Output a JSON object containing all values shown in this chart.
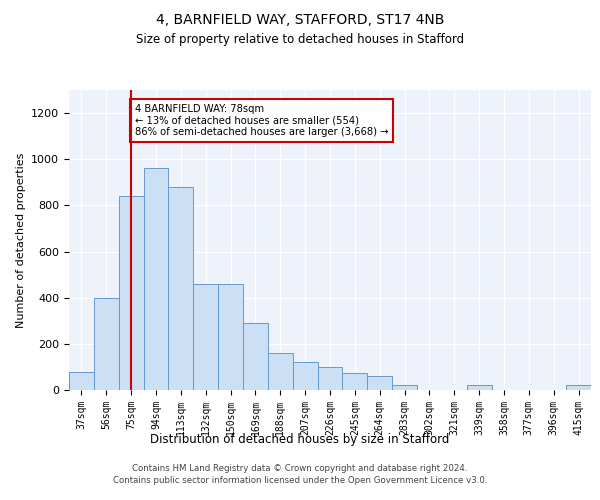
{
  "title1": "4, BARNFIELD WAY, STAFFORD, ST17 4NB",
  "title2": "Size of property relative to detached houses in Stafford",
  "xlabel": "Distribution of detached houses by size in Stafford",
  "ylabel": "Number of detached properties",
  "categories": [
    "37sqm",
    "56sqm",
    "75sqm",
    "94sqm",
    "113sqm",
    "132sqm",
    "150sqm",
    "169sqm",
    "188sqm",
    "207sqm",
    "226sqm",
    "245sqm",
    "264sqm",
    "283sqm",
    "302sqm",
    "321sqm",
    "339sqm",
    "358sqm",
    "377sqm",
    "396sqm",
    "415sqm"
  ],
  "values": [
    80,
    400,
    840,
    960,
    880,
    460,
    460,
    290,
    160,
    120,
    100,
    75,
    60,
    20,
    0,
    0,
    20,
    0,
    0,
    0,
    20
  ],
  "bar_color": "#cce0f5",
  "bar_edge_color": "#6699cc",
  "vline_x_index": 2,
  "vline_color": "#cc0000",
  "annotation_text": "4 BARNFIELD WAY: 78sqm\n← 13% of detached houses are smaller (554)\n86% of semi-detached houses are larger (3,668) →",
  "annotation_box_color": "#ffffff",
  "annotation_box_edge_color": "#cc0000",
  "ylim": [
    0,
    1300
  ],
  "yticks": [
    0,
    200,
    400,
    600,
    800,
    1000,
    1200
  ],
  "footnote1": "Contains HM Land Registry data © Crown copyright and database right 2024.",
  "footnote2": "Contains public sector information licensed under the Open Government Licence v3.0.",
  "background_color": "#eef2fa"
}
